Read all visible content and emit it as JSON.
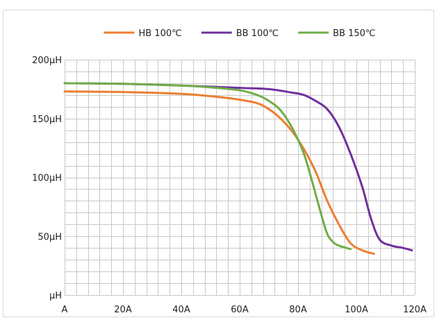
{
  "chart_data": {
    "type": "line",
    "title": "",
    "xlabel": "",
    "ylabel": "",
    "xlim": [
      0,
      120
    ],
    "ylim": [
      0,
      200
    ],
    "x_ticks": [
      {
        "value": 0,
        "label": "A"
      },
      {
        "value": 20,
        "label": "20A"
      },
      {
        "value": 40,
        "label": "40A"
      },
      {
        "value": 60,
        "label": "60A"
      },
      {
        "value": 80,
        "label": "80A"
      },
      {
        "value": 100,
        "label": "100A"
      },
      {
        "value": 120,
        "label": "120A"
      }
    ],
    "y_ticks": [
      {
        "value": 0,
        "label": "μH"
      },
      {
        "value": 50,
        "label": "50μH"
      },
      {
        "value": 100,
        "label": "100μH"
      },
      {
        "value": 150,
        "label": "150μH"
      },
      {
        "value": 200,
        "label": "200μH"
      }
    ],
    "grid": true,
    "minor_grid": {
      "x_step": 4,
      "y_step": 10
    },
    "legend_position": "top",
    "series": [
      {
        "name": "HB 100℃",
        "color": "#ED7D31",
        "points": [
          [
            0,
            173
          ],
          [
            20,
            172.5
          ],
          [
            40,
            171
          ],
          [
            50,
            169
          ],
          [
            60,
            166
          ],
          [
            66,
            163
          ],
          [
            70,
            158
          ],
          [
            74,
            150
          ],
          [
            78,
            139
          ],
          [
            82,
            124
          ],
          [
            86,
            105
          ],
          [
            90,
            80
          ],
          [
            94,
            60
          ],
          [
            98,
            44
          ],
          [
            102,
            38
          ],
          [
            106,
            35
          ]
        ]
      },
      {
        "name": "BB 100℃",
        "color": "#7030A0",
        "points": [
          [
            0,
            180
          ],
          [
            20,
            179.5
          ],
          [
            40,
            178
          ],
          [
            60,
            176
          ],
          [
            70,
            175
          ],
          [
            78,
            172
          ],
          [
            82,
            170
          ],
          [
            86,
            165
          ],
          [
            90,
            158
          ],
          [
            94,
            143
          ],
          [
            98,
            120
          ],
          [
            102,
            92
          ],
          [
            105,
            65
          ],
          [
            108,
            47
          ],
          [
            112,
            42
          ],
          [
            116,
            40
          ],
          [
            119,
            38
          ]
        ]
      },
      {
        "name": "BB 150℃",
        "color": "#70AD47",
        "points": [
          [
            0,
            180
          ],
          [
            20,
            179.5
          ],
          [
            40,
            178
          ],
          [
            50,
            176.5
          ],
          [
            60,
            174
          ],
          [
            66,
            170
          ],
          [
            70,
            165
          ],
          [
            74,
            157
          ],
          [
            78,
            142
          ],
          [
            82,
            120
          ],
          [
            85,
            95
          ],
          [
            88,
            68
          ],
          [
            90,
            52
          ],
          [
            92,
            45
          ],
          [
            94,
            42
          ],
          [
            98,
            39
          ]
        ]
      }
    ]
  }
}
